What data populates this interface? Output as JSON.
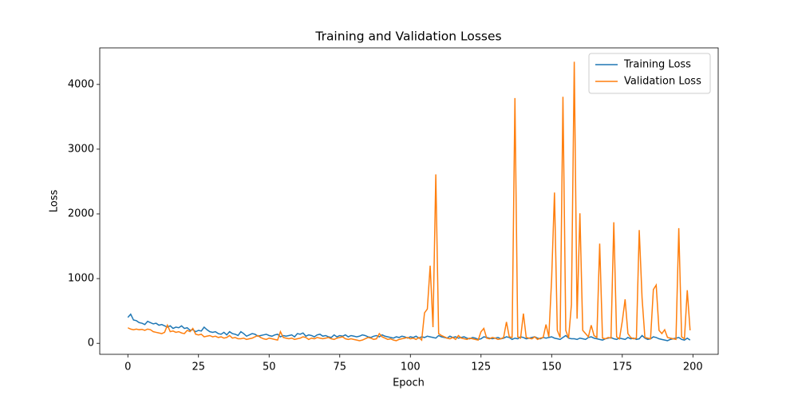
{
  "chart_data": {
    "type": "line",
    "title": "Training and Validation Losses",
    "x_label": "Epoch",
    "y_label": "Loss",
    "x": [
      0,
      1,
      2,
      3,
      4,
      5,
      6,
      7,
      8,
      9,
      10,
      11,
      12,
      13,
      14,
      15,
      16,
      17,
      18,
      19,
      20,
      21,
      22,
      23,
      24,
      25,
      26,
      27,
      28,
      29,
      30,
      31,
      32,
      33,
      34,
      35,
      36,
      37,
      38,
      39,
      40,
      41,
      42,
      43,
      44,
      45,
      46,
      47,
      48,
      49,
      50,
      51,
      52,
      53,
      54,
      55,
      56,
      57,
      58,
      59,
      60,
      61,
      62,
      63,
      64,
      65,
      66,
      67,
      68,
      69,
      70,
      71,
      72,
      73,
      74,
      75,
      76,
      77,
      78,
      79,
      80,
      81,
      82,
      83,
      84,
      85,
      86,
      87,
      88,
      89,
      90,
      91,
      92,
      93,
      94,
      95,
      96,
      97,
      98,
      99,
      100,
      101,
      102,
      103,
      104,
      105,
      106,
      107,
      108,
      109,
      110,
      111,
      112,
      113,
      114,
      115,
      116,
      117,
      118,
      119,
      120,
      121,
      122,
      123,
      124,
      125,
      126,
      127,
      128,
      129,
      130,
      131,
      132,
      133,
      134,
      135,
      136,
      137,
      138,
      139,
      140,
      141,
      142,
      143,
      144,
      145,
      146,
      147,
      148,
      149,
      150,
      151,
      152,
      153,
      154,
      155,
      156,
      157,
      158,
      159,
      160,
      161,
      162,
      163,
      164,
      165,
      166,
      167,
      168,
      169,
      170,
      171,
      172,
      173,
      174,
      175,
      176,
      177,
      178,
      179,
      180,
      181,
      182,
      183,
      184,
      185,
      186,
      187,
      188,
      189,
      190,
      191,
      192,
      193,
      194,
      195,
      196,
      197,
      198,
      199
    ],
    "series": [
      {
        "name": "Training Loss",
        "color": "#1f77b4",
        "values": [
          400,
          450,
          360,
          350,
          320,
          310,
          290,
          340,
          320,
          300,
          310,
          280,
          290,
          270,
          250,
          270,
          230,
          250,
          240,
          270,
          230,
          240,
          200,
          210,
          180,
          200,
          190,
          250,
          210,
          180,
          170,
          180,
          150,
          140,
          170,
          130,
          180,
          150,
          140,
          120,
          180,
          150,
          110,
          130,
          150,
          140,
          110,
          120,
          130,
          140,
          120,
          110,
          130,
          140,
          100,
          120,
          110,
          120,
          130,
          100,
          150,
          140,
          160,
          110,
          130,
          120,
          100,
          130,
          140,
          110,
          120,
          100,
          90,
          130,
          100,
          120,
          110,
          130,
          100,
          120,
          110,
          100,
          110,
          130,
          120,
          100,
          90,
          110,
          120,
          100,
          130,
          110,
          100,
          90,
          80,
          100,
          90,
          110,
          100,
          80,
          100,
          90,
          110,
          80,
          100,
          90,
          110,
          100,
          90,
          80,
          120,
          100,
          90,
          80,
          110,
          90,
          100,
          80,
          90,
          100,
          80,
          70,
          90,
          80,
          60,
          70,
          100,
          90,
          80,
          70,
          80,
          90,
          70,
          80,
          100,
          90,
          60,
          80,
          70,
          100,
          90,
          70,
          80,
          90,
          100,
          80,
          70,
          90,
          80,
          90,
          100,
          80,
          70,
          60,
          90,
          120,
          80,
          70,
          70,
          60,
          80,
          70,
          60,
          90,
          100,
          80,
          70,
          60,
          50,
          70,
          80,
          90,
          70,
          60,
          80,
          70,
          60,
          90,
          70,
          80,
          60,
          70,
          120,
          80,
          60,
          70,
          100,
          90,
          70,
          60,
          50,
          40,
          60,
          70,
          80,
          90,
          60,
          50,
          80,
          50
        ]
      },
      {
        "name": "Validation Loss",
        "color": "#ff7f0e",
        "values": [
          240,
          220,
          210,
          220,
          210,
          215,
          200,
          220,
          210,
          180,
          170,
          160,
          150,
          170,
          280,
          180,
          190,
          170,
          180,
          160,
          150,
          200,
          180,
          230,
          140,
          130,
          140,
          100,
          110,
          120,
          100,
          110,
          90,
          100,
          80,
          90,
          120,
          80,
          90,
          70,
          70,
          80,
          60,
          70,
          80,
          100,
          120,
          90,
          70,
          60,
          80,
          70,
          60,
          50,
          180,
          90,
          80,
          70,
          80,
          60,
          70,
          80,
          100,
          90,
          60,
          80,
          70,
          90,
          80,
          70,
          80,
          90,
          70,
          60,
          80,
          90,
          100,
          70,
          60,
          70,
          60,
          50,
          40,
          50,
          70,
          90,
          80,
          60,
          70,
          150,
          100,
          80,
          60,
          70,
          50,
          40,
          60,
          70,
          80,
          90,
          70,
          80,
          60,
          90,
          50,
          470,
          530,
          1200,
          250,
          2610,
          150,
          120,
          100,
          80,
          70,
          90,
          60,
          120,
          80,
          70,
          60,
          80,
          70,
          60,
          50,
          180,
          230,
          80,
          70,
          90,
          80,
          60,
          70,
          90,
          330,
          100,
          90,
          3790,
          100,
          80,
          460,
          90,
          80,
          70,
          100,
          60,
          80,
          90,
          290,
          100,
          1000,
          2330,
          200,
          90,
          3810,
          200,
          80,
          600,
          4350,
          380,
          2010,
          200,
          150,
          100,
          280,
          120,
          90,
          1540,
          80,
          70,
          90,
          80,
          1870,
          100,
          70,
          340,
          680,
          150,
          90,
          70,
          80,
          1750,
          700,
          90,
          80,
          70,
          830,
          900,
          200,
          150,
          210,
          90,
          80,
          70,
          60,
          1780,
          100,
          70,
          820,
          200
        ]
      }
    ],
    "xlim": [
      -9.95,
      208.95
    ],
    "ylim": [
      -170,
      4565
    ],
    "xticks": [
      0,
      25,
      50,
      75,
      100,
      125,
      150,
      175,
      200
    ],
    "yticks": [
      0,
      1000,
      2000,
      3000,
      4000
    ],
    "legend": "upper right"
  }
}
